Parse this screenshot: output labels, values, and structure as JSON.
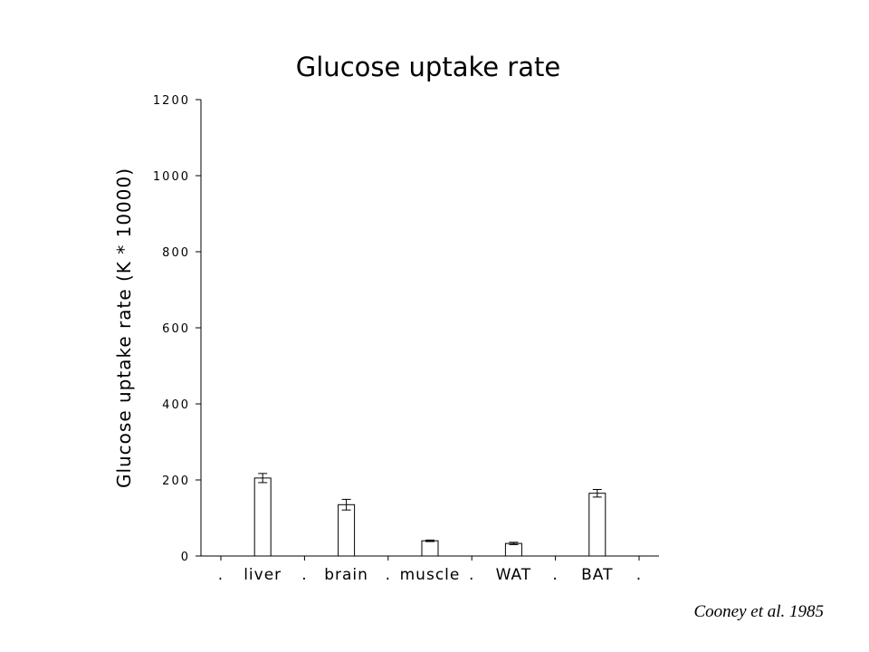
{
  "chart_data": {
    "type": "bar",
    "title": "Glucose uptake rate",
    "ylabel": "Glucose uptake rate  (K * 10000)",
    "xlabel": "",
    "ylim": [
      0,
      1200
    ],
    "yticks": [
      0,
      200,
      400,
      600,
      800,
      1000,
      1200
    ],
    "x_tick_labels": [
      ".",
      "liver",
      ".",
      "brain",
      ".",
      "muscle",
      ".",
      "WAT",
      ".",
      "BAT",
      "."
    ],
    "categories": [
      "liver",
      "brain",
      "muscle",
      "WAT",
      "BAT"
    ],
    "values": [
      205,
      135,
      40,
      33,
      165
    ],
    "errors": [
      12,
      14,
      2,
      3,
      10
    ],
    "grid": false,
    "legend": false
  },
  "citation": "Cooney et al. 1985"
}
